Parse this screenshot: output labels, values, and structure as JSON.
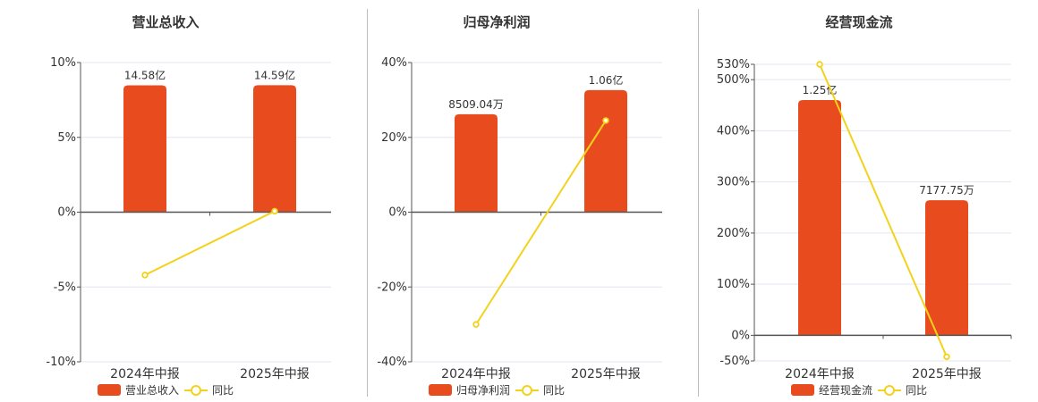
{
  "colors": {
    "bar": "#e84c1e",
    "line": "#f2d21b",
    "axis": "#555555",
    "grid": "#e3e6ef",
    "text": "#333333"
  },
  "chart_data": [
    {
      "type": "bar",
      "title": "营业总收入",
      "categories": [
        "2024年中报",
        "2025年中报"
      ],
      "series": [
        {
          "name": "营业总收入",
          "kind": "bar",
          "values": [
            14.58,
            14.59
          ],
          "labels": [
            "14.58亿",
            "14.59亿"
          ]
        },
        {
          "name": "同比",
          "kind": "line",
          "axis": "right",
          "values": [
            -4.2,
            0.07
          ]
        }
      ],
      "y_ticks": [
        "10%",
        "5%",
        "0%",
        "-5%",
        "-10%"
      ],
      "ylim_right": [
        -10,
        10
      ],
      "ylim_left": [
        -17.2,
        17.2
      ],
      "grid": true
    },
    {
      "type": "bar",
      "title": "归母净利润",
      "categories": [
        "2024年中报",
        "2025年中报"
      ],
      "series": [
        {
          "name": "归母净利润",
          "kind": "bar",
          "values": [
            0.8509,
            1.06
          ],
          "labels": [
            "8509.04万",
            "1.06亿"
          ]
        },
        {
          "name": "同比",
          "kind": "line",
          "axis": "right",
          "values": [
            -30.0,
            24.5
          ]
        }
      ],
      "y_ticks": [
        "40%",
        "20%",
        "0%",
        "-20%",
        "-40%"
      ],
      "ylim_right": [
        -40,
        40
      ],
      "ylim_left": [
        -1.3,
        1.3
      ],
      "grid": true
    },
    {
      "type": "bar",
      "title": "经营现金流",
      "categories": [
        "2024年中报",
        "2025年中报"
      ],
      "series": [
        {
          "name": "经营现金流",
          "kind": "bar",
          "values": [
            1.25,
            0.7178
          ],
          "labels": [
            "1.25亿",
            "7177.75万"
          ]
        },
        {
          "name": "同比",
          "kind": "line",
          "axis": "right",
          "values": [
            530,
            -42
          ]
        }
      ],
      "y_ticks": [
        "530%",
        "500%",
        "400%",
        "300%",
        "200%",
        "100%",
        "0%",
        "-50%"
      ],
      "ylim_right": [
        -50,
        530
      ],
      "ylim_left": [
        -0.136,
        1.44
      ],
      "grid": true
    }
  ],
  "legend_line_label": "同比"
}
